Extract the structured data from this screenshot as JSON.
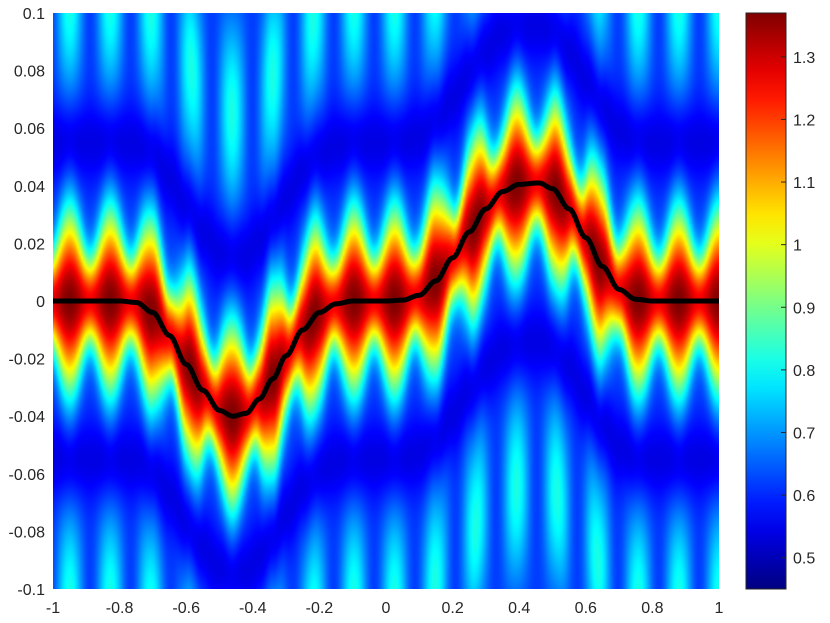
{
  "chart_data": {
    "type": "heatmap",
    "title": "",
    "xlabel": "",
    "ylabel": "",
    "xlim": [
      -1,
      1
    ],
    "ylim": [
      -0.1,
      0.1
    ],
    "x_ticks": [
      -1,
      -0.8,
      -0.6,
      -0.4,
      -0.2,
      0,
      0.2,
      0.4,
      0.6,
      0.8,
      1
    ],
    "x_tick_labels": [
      "-1",
      "-0.8",
      "-0.6",
      "-0.4",
      "-0.2",
      "0",
      "0.2",
      "0.4",
      "0.6",
      "0.8",
      "1"
    ],
    "y_ticks": [
      -0.1,
      -0.08,
      -0.06,
      -0.04,
      -0.02,
      0,
      0.02,
      0.04,
      0.06,
      0.08,
      0.1
    ],
    "y_tick_labels": [
      "-0.1",
      "-0.08",
      "-0.06",
      "-0.04",
      "-0.02",
      "0",
      "0.02",
      "0.04",
      "0.06",
      "0.08",
      "0.1"
    ],
    "colormap": "jet",
    "color_range": [
      0.45,
      1.37
    ],
    "colorbar": {
      "ticks": [
        0.5,
        0.6,
        0.7,
        0.8,
        0.9,
        1,
        1.1,
        1.2,
        1.3
      ],
      "tick_labels": [
        "0.5",
        "0.6",
        "0.7",
        "0.8",
        "0.9",
        "1",
        "1.1",
        "1.2",
        "1.3"
      ]
    },
    "overlay_curve": {
      "color": "#000000",
      "x": [
        -1,
        -0.9,
        -0.8,
        -0.75,
        -0.7,
        -0.65,
        -0.6,
        -0.55,
        -0.5,
        -0.46,
        -0.42,
        -0.38,
        -0.34,
        -0.3,
        -0.25,
        -0.2,
        -0.15,
        -0.1,
        -0.05,
        0,
        0.05,
        0.1,
        0.15,
        0.2,
        0.25,
        0.3,
        0.35,
        0.4,
        0.46,
        0.5,
        0.55,
        0.6,
        0.65,
        0.7,
        0.75,
        0.8,
        0.9,
        1
      ],
      "y": [
        0,
        0,
        0,
        -0.0005,
        -0.004,
        -0.012,
        -0.022,
        -0.031,
        -0.038,
        -0.04,
        -0.039,
        -0.034,
        -0.027,
        -0.019,
        -0.01,
        -0.004,
        -0.001,
        0,
        0,
        0,
        0.0003,
        0.002,
        0.007,
        0.015,
        0.024,
        0.032,
        0.038,
        0.0405,
        0.041,
        0.039,
        0.032,
        0.022,
        0.012,
        0.004,
        0.0006,
        0,
        0,
        0
      ]
    },
    "field_description_params": {
      "ridge_peak": 1.37,
      "background_min": 0.45
    }
  }
}
